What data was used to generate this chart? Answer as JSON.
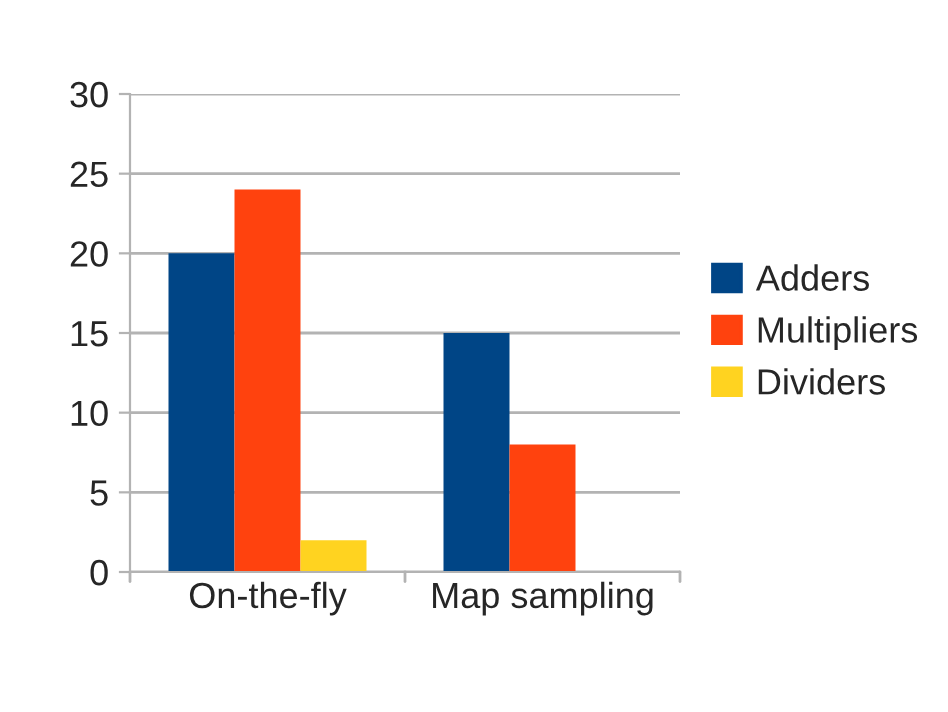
{
  "chart_data": {
    "type": "bar",
    "categories": [
      "On-the-fly",
      "Map sampling"
    ],
    "series": [
      {
        "name": "Adders",
        "color": "#004586",
        "values": [
          20,
          15
        ]
      },
      {
        "name": "Multipliers",
        "color": "#ff420e",
        "values": [
          24,
          8
        ]
      },
      {
        "name": "Dividers",
        "color": "#ffd320",
        "values": [
          2,
          0
        ]
      }
    ],
    "ylim": [
      0,
      30
    ],
    "yticks": [
      0,
      5,
      10,
      15,
      20,
      25,
      30
    ],
    "grid": "y",
    "legend": "right"
  }
}
